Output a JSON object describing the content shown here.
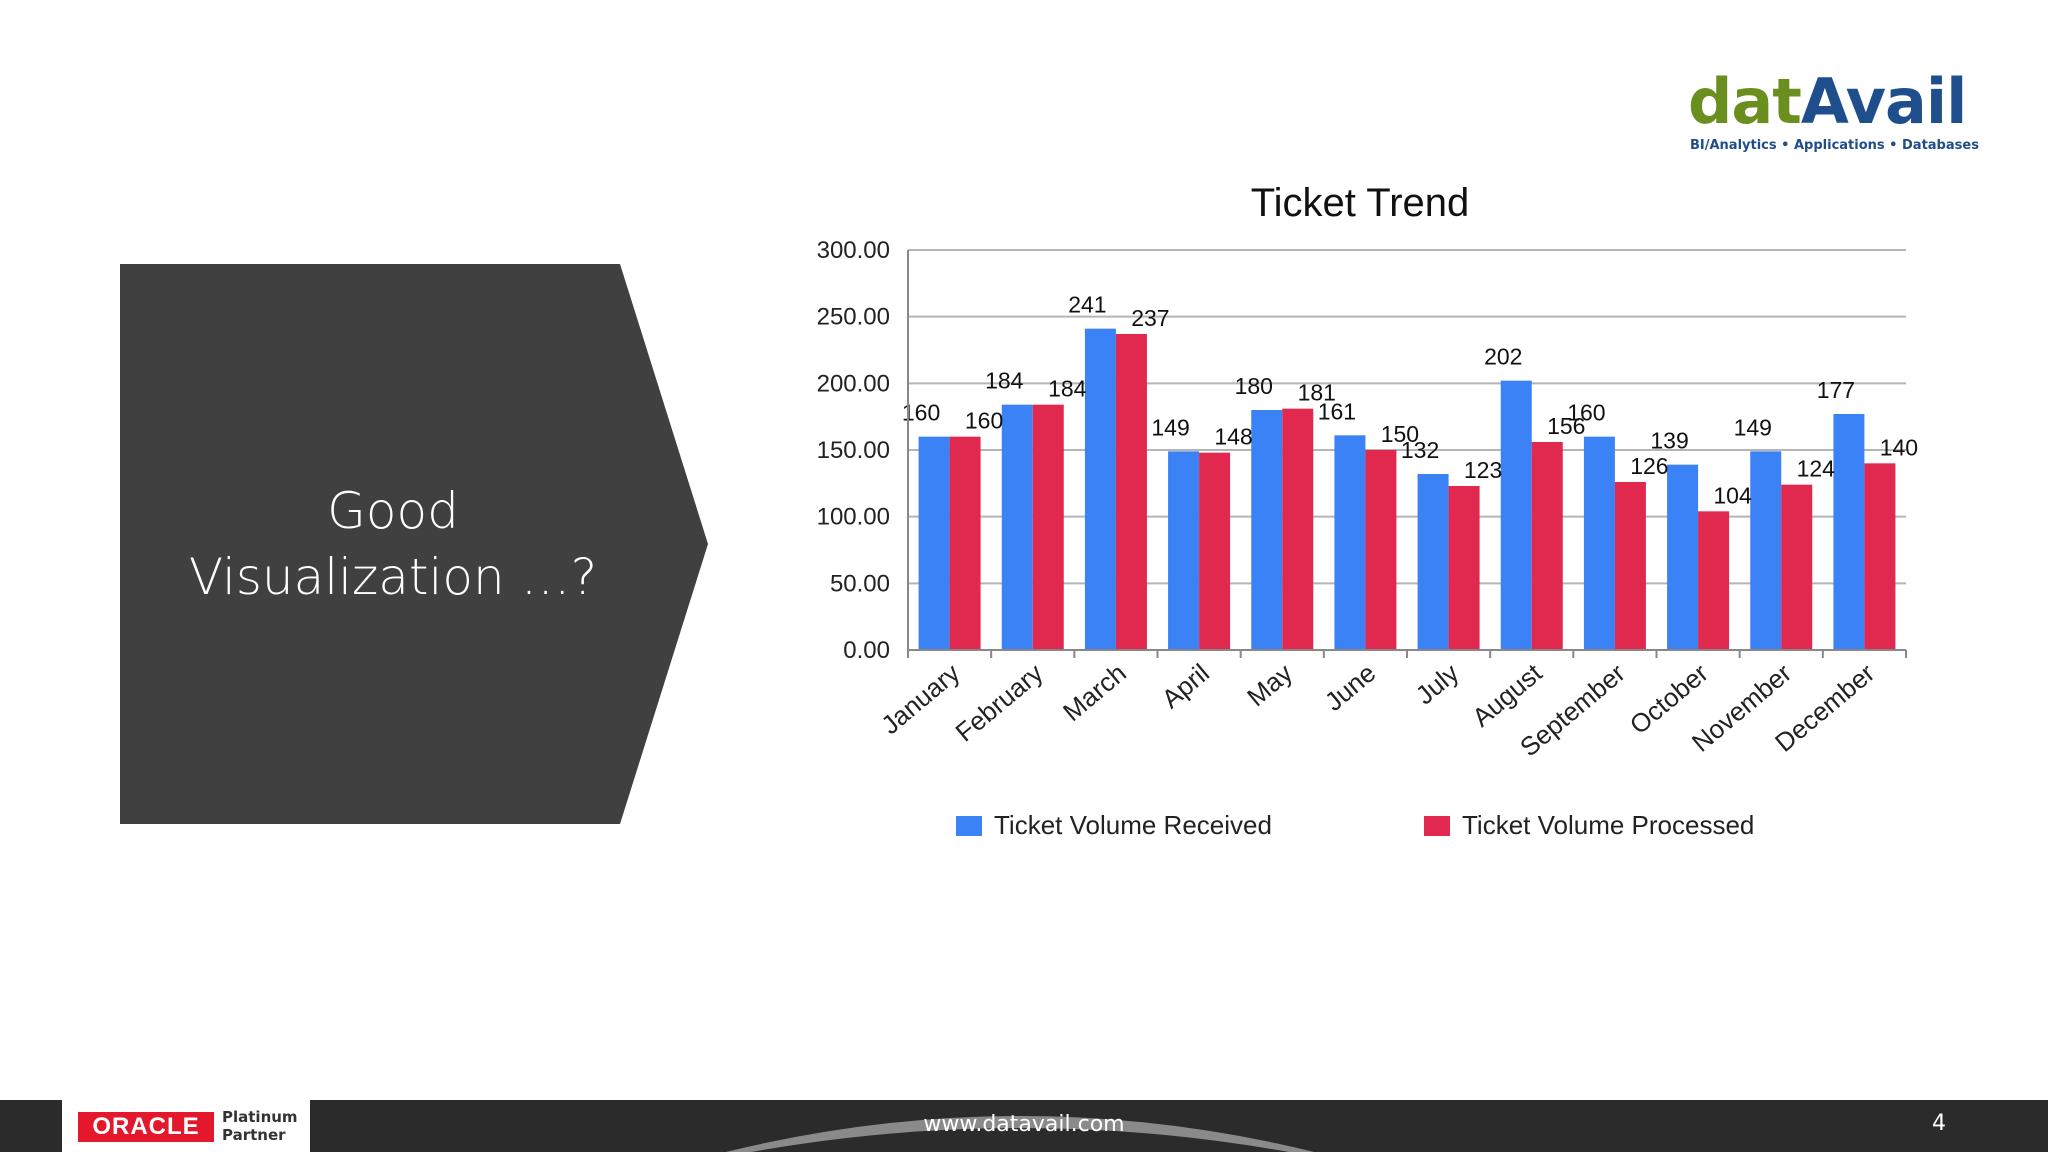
{
  "logo": {
    "name_part1": "dat",
    "name_part2": "Avail",
    "tagline": "BI/Analytics • Applications • Databases"
  },
  "panel": {
    "title_line1": "Good",
    "title_line2": "Visualization …?"
  },
  "colors": {
    "received": "#3b82f6",
    "processed": "#e1294f",
    "panel": "#404040",
    "footer": "#2b2b2b"
  },
  "chart_data": {
    "type": "bar",
    "title": "Ticket Trend",
    "categories": [
      "January",
      "February",
      "March",
      "April",
      "May",
      "June",
      "July",
      "August",
      "September",
      "October",
      "November",
      "December"
    ],
    "series": [
      {
        "name": "Ticket Volume Received",
        "values": [
          160,
          184,
          241,
          149,
          180,
          161,
          132,
          202,
          160,
          139,
          149,
          177
        ]
      },
      {
        "name": "Ticket Volume Processed",
        "values": [
          160,
          184,
          237,
          148,
          181,
          150,
          123,
          156,
          126,
          104,
          124,
          140
        ]
      }
    ],
    "ylim": [
      0,
      300
    ],
    "yticks": [
      "0.00",
      "50.00",
      "100.00",
      "150.00",
      "200.00",
      "250.00",
      "300.00"
    ],
    "grid": true,
    "legend_position": "bottom"
  },
  "footer": {
    "oracle": "ORACLE",
    "partner_line1": "Platinum",
    "partner_line2": "Partner",
    "url": "www.datavail.com",
    "page": "4"
  }
}
